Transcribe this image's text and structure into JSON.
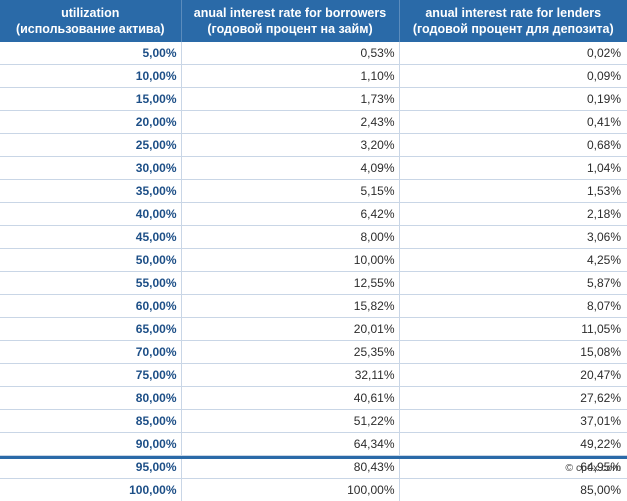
{
  "colors": {
    "header_bg": "#2a6aa8",
    "header_text": "#ffffff",
    "util_text": "#1d4f87",
    "grid": "#c9d6e6"
  },
  "table": {
    "headers": [
      {
        "line1": "utilization",
        "line2": "(использование актива)"
      },
      {
        "line1": "anual interest rate for borrowers",
        "line2": "(годовой процент на займ)"
      },
      {
        "line1": "anual interest rate for lenders",
        "line2": "(годовой процент для депозита)"
      }
    ],
    "rows": [
      [
        "5,00%",
        "0,53%",
        "0,02%"
      ],
      [
        "10,00%",
        "1,10%",
        "0,09%"
      ],
      [
        "15,00%",
        "1,73%",
        "0,19%"
      ],
      [
        "20,00%",
        "2,43%",
        "0,41%"
      ],
      [
        "25,00%",
        "3,20%",
        "0,68%"
      ],
      [
        "30,00%",
        "4,09%",
        "1,04%"
      ],
      [
        "35,00%",
        "5,15%",
        "1,53%"
      ],
      [
        "40,00%",
        "6,42%",
        "2,18%"
      ],
      [
        "45,00%",
        "8,00%",
        "3,06%"
      ],
      [
        "50,00%",
        "10,00%",
        "4,25%"
      ],
      [
        "55,00%",
        "12,55%",
        "5,87%"
      ],
      [
        "60,00%",
        "15,82%",
        "8,07%"
      ],
      [
        "65,00%",
        "20,01%",
        "11,05%"
      ],
      [
        "70,00%",
        "25,35%",
        "15,08%"
      ],
      [
        "75,00%",
        "32,11%",
        "20,47%"
      ],
      [
        "80,00%",
        "40,61%",
        "27,62%"
      ],
      [
        "85,00%",
        "51,22%",
        "37,01%"
      ],
      [
        "90,00%",
        "64,34%",
        "49,22%"
      ],
      [
        "95,00%",
        "80,43%",
        "64,95%"
      ],
      [
        "100,00%",
        "100,00%",
        "85,00%"
      ]
    ]
  },
  "footer": {
    "credit": "© cp0x.com"
  }
}
